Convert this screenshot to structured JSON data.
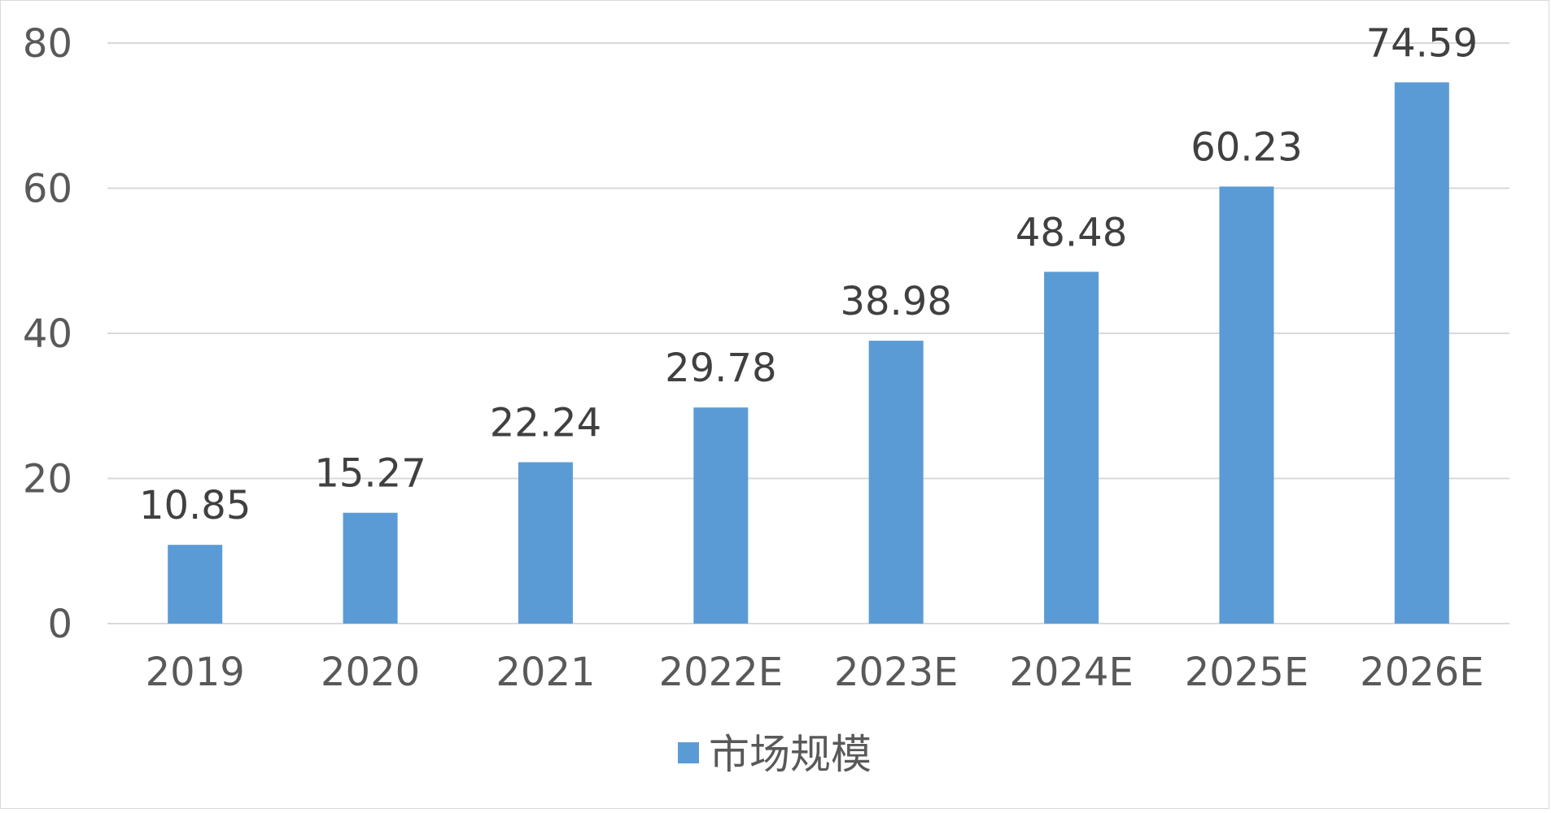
{
  "chart_data": {
    "type": "bar",
    "categories": [
      "2019",
      "2020",
      "2021",
      "2022E",
      "2023E",
      "2024E",
      "2025E",
      "2026E"
    ],
    "series": [
      {
        "name": "市场规模",
        "values": [
          10.85,
          15.27,
          22.24,
          29.78,
          38.98,
          48.48,
          60.23,
          74.59
        ],
        "color": "#5b9bd5"
      }
    ],
    "ylim": [
      0,
      80
    ],
    "yticks": [
      "0",
      "20",
      "40",
      "60",
      "80"
    ],
    "grid": true,
    "legend": "bottom-center",
    "data_labels": [
      "10.85",
      "15.27",
      "22.24",
      "29.78",
      "38.98",
      "48.48",
      "60.23",
      "74.59"
    ]
  }
}
